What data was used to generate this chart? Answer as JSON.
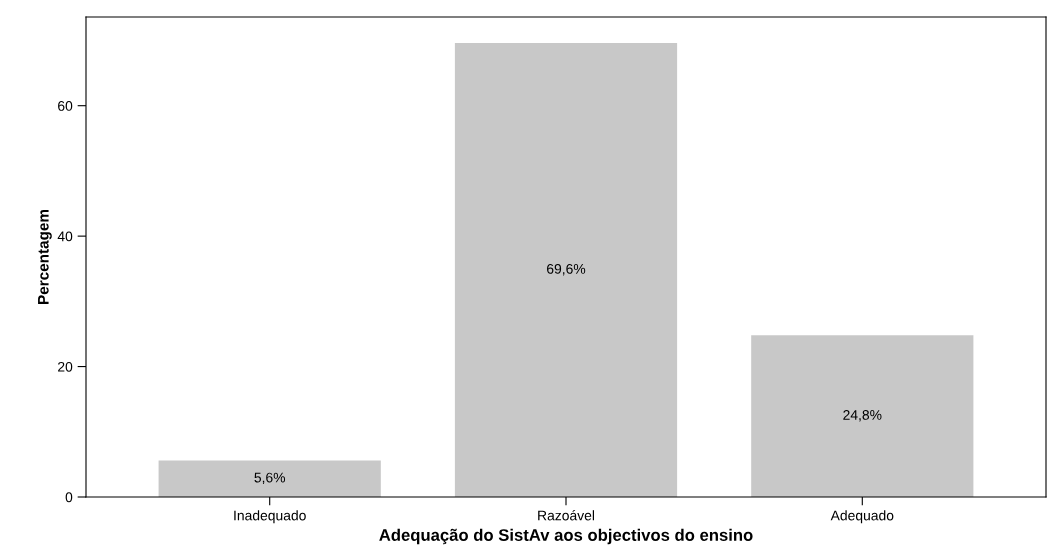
{
  "chart_data": {
    "type": "bar",
    "xlabel": "Adequação do SistAv aos objectivos do ensino",
    "ylabel": "Percentagem",
    "categories": [
      "Inadequado",
      "Razoável",
      "Adequado"
    ],
    "values": [
      5.6,
      69.6,
      24.8
    ],
    "value_labels": [
      "5,6%",
      "69,6%",
      "24,8%"
    ],
    "color": "#c8c8c8",
    "ylim": [
      0,
      73.6
    ],
    "yticks": [
      0,
      20,
      40,
      60
    ],
    "grid": false,
    "legend": false
  }
}
